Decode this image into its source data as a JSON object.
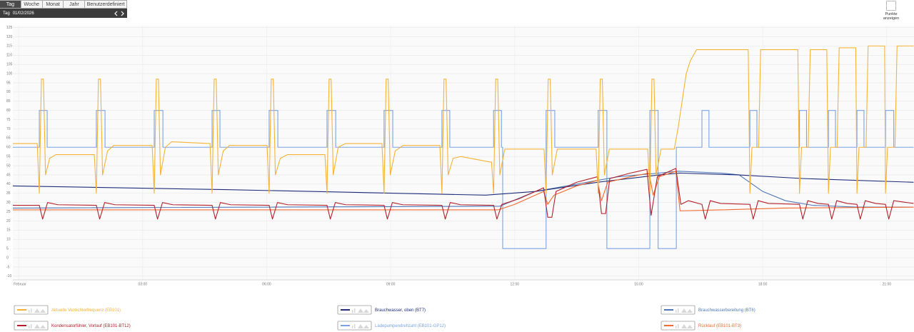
{
  "toolbar": {
    "tabs": [
      "Tag",
      "Woche",
      "Monat",
      "Jahr",
      "Benutzerdefiniert"
    ],
    "period": "Tag",
    "date": "01/02/2026"
  },
  "options": {
    "show_points": "Punkte anzeigen"
  },
  "chart_data": {
    "type": "line",
    "grid": true,
    "xlim": [
      -0.14,
      21.66
    ],
    "ylim": [
      -12,
      126
    ],
    "xticks": [
      {
        "value": 0,
        "label": "Februar"
      },
      {
        "value": 3,
        "label": "03:00"
      },
      {
        "value": 6,
        "label": "06:00"
      },
      {
        "value": 9,
        "label": "09:00"
      },
      {
        "value": 12,
        "label": "12:00"
      },
      {
        "value": 15,
        "label": "15:00"
      },
      {
        "value": 18,
        "label": "18:00"
      },
      {
        "value": 21,
        "label": "21:00"
      }
    ],
    "yticks": [
      -10,
      -5,
      0,
      5,
      10,
      15,
      20,
      25,
      30,
      35,
      40,
      45,
      50,
      55,
      60,
      65,
      70,
      75,
      80,
      85,
      90,
      95,
      100,
      105,
      110,
      115,
      120,
      125
    ],
    "series": [
      {
        "name": "Aktuelle Verdichterfrequenz (EB101)",
        "color": "#f5b335",
        "x": [
          -0.14,
          0.45,
          0.5,
          0.55,
          0.6,
          0.65,
          0.75,
          0.9,
          1.83,
          1.88,
          1.93,
          1.98,
          2.03,
          2.15,
          2.3,
          3.23,
          3.28,
          3.33,
          3.38,
          3.43,
          3.55,
          3.7,
          4.63,
          4.68,
          4.73,
          4.78,
          4.83,
          4.95,
          5.1,
          6.01,
          6.06,
          6.11,
          6.16,
          6.21,
          6.33,
          6.5,
          7.41,
          7.46,
          7.51,
          7.56,
          7.61,
          7.73,
          7.9,
          8.79,
          8.84,
          8.89,
          8.94,
          8.99,
          9.11,
          9.3,
          10.19,
          10.24,
          10.29,
          10.34,
          10.39,
          10.51,
          10.7,
          11.4,
          11.44,
          11.49,
          11.54,
          11.59,
          11.64,
          11.76,
          12.71,
          12.76,
          12.81,
          12.86,
          12.91,
          13.03,
          13.97,
          14.02,
          14.07,
          14.12,
          14.17,
          14.29,
          15.22,
          15.27,
          15.32,
          15.37,
          15.42,
          15.54,
          15.86,
          15.95,
          16.05,
          16.15,
          16.25,
          16.4,
          17.65,
          17.69,
          17.74,
          17.9,
          17.95,
          18.85,
          18.89,
          18.94,
          19.1,
          19.15,
          19.55,
          19.59,
          19.64,
          19.8,
          19.85,
          20.25,
          20.28,
          20.33,
          20.5,
          20.55,
          20.95,
          20.97,
          21.02,
          21.2,
          21.25,
          21.65
        ],
        "values": [
          62,
          62,
          35,
          97,
          97,
          45,
          54,
          56,
          56,
          35,
          97,
          97,
          45,
          58,
          61,
          61,
          35,
          97,
          97,
          45,
          60,
          63,
          62,
          35,
          97,
          97,
          45,
          58,
          61,
          61,
          35,
          97,
          97,
          45,
          54,
          56,
          56,
          35,
          97,
          97,
          45,
          60,
          62,
          62,
          35,
          97,
          97,
          45,
          58,
          61,
          61,
          35,
          97,
          97,
          45,
          54,
          55,
          52,
          52,
          35,
          97,
          97,
          45,
          59,
          59,
          35,
          97,
          97,
          45,
          59,
          59,
          35,
          97,
          97,
          45,
          59,
          59,
          35,
          97,
          97,
          45,
          59,
          59,
          70,
          85,
          100,
          107,
          113,
          113,
          35,
          60,
          60,
          113,
          113,
          35,
          60,
          60,
          113,
          113,
          35,
          60,
          60,
          114,
          114,
          35,
          60,
          60,
          115,
          115,
          35,
          60,
          60,
          115,
          115
        ]
      },
      {
        "name": "Brauchwasser, oben (BT7)",
        "color": "#1f2d7a",
        "x": [
          -0.14,
          5,
          11.3,
          12.5,
          14,
          15.5,
          16.0,
          17.4,
          19,
          21.65
        ],
        "values": [
          39,
          37,
          34,
          36,
          41,
          45,
          46,
          45,
          43,
          41
        ]
      },
      {
        "name": "Brauchwasserbereitung (BT6)",
        "color": "#4e77b8",
        "x": [
          -0.14,
          11.64,
          12.5,
          13.5,
          14.5,
          15.5,
          15.96,
          17.0,
          17.43,
          18.0,
          18.55,
          19.2,
          20.28,
          21.65
        ],
        "values": [
          27,
          28,
          36,
          40,
          44,
          46,
          47,
          46,
          45,
          36,
          31,
          28.5,
          27.5,
          27.5
        ]
      },
      {
        "name": "Kondensatorfühler, Vorlauf (EB101-BT12)",
        "color": "#b3202a",
        "x": [
          -0.14,
          0.5,
          0.58,
          0.7,
          0.95,
          1.88,
          1.96,
          2.08,
          2.33,
          3.28,
          3.36,
          3.48,
          3.73,
          4.68,
          4.76,
          4.88,
          5.13,
          6.06,
          6.14,
          6.26,
          6.51,
          7.46,
          7.54,
          7.66,
          7.91,
          8.84,
          8.92,
          9.04,
          9.29,
          10.24,
          10.32,
          10.44,
          10.69,
          11.49,
          11.57,
          11.69,
          12.1,
          12.7,
          12.8,
          12.9,
          13.0,
          13.5,
          14.0,
          14.1,
          14.2,
          14.3,
          14.8,
          15.2,
          15.3,
          15.45,
          15.9,
          16.02,
          16.2,
          16.53,
          16.61,
          16.73,
          16.98,
          17.69,
          17.77,
          17.89,
          18.14,
          18.89,
          18.97,
          19.09,
          19.34,
          19.59,
          19.67,
          19.79,
          20.04,
          20.28,
          20.36,
          20.48,
          20.73,
          20.97,
          21.05,
          21.17,
          21.65
        ],
        "values": [
          28.5,
          28.5,
          21,
          30,
          28.8,
          28.5,
          21,
          30,
          28.8,
          28.5,
          21,
          30,
          28.8,
          28.5,
          21,
          30,
          28.8,
          28.5,
          21,
          30,
          28.8,
          28.5,
          21,
          30,
          28.8,
          28.5,
          21,
          30,
          28.8,
          28.5,
          21,
          30,
          28.8,
          28.5,
          21,
          29,
          32,
          38,
          22,
          22,
          36,
          41,
          44,
          24,
          24,
          43,
          46,
          48,
          23,
          44,
          48.5,
          29,
          31,
          29,
          21,
          31,
          29.5,
          29,
          21,
          31,
          29.5,
          29,
          21,
          31,
          29.5,
          29,
          21,
          31,
          29.5,
          29,
          21,
          31,
          29.5,
          29,
          21,
          31,
          29.5
        ]
      },
      {
        "name": "Ladepumpendrehzahl (EB101-GP12)",
        "color": "#7aa3e5",
        "x": [
          -0.14,
          0.5,
          0.5,
          0.69,
          0.69,
          1.88,
          1.88,
          2.09,
          2.09,
          3.28,
          3.28,
          3.49,
          3.49,
          4.68,
          4.68,
          4.87,
          4.87,
          6.06,
          6.06,
          6.27,
          6.27,
          7.46,
          7.46,
          7.67,
          7.67,
          8.84,
          8.84,
          9.05,
          9.05,
          10.24,
          10.24,
          10.43,
          10.43,
          11.49,
          11.49,
          11.68,
          11.68,
          11.71,
          11.71,
          12.76,
          12.76,
          12.97,
          12.97,
          14.02,
          14.02,
          14.23,
          14.23,
          15.27,
          15.27,
          15.47,
          15.47,
          15.91,
          15.91,
          16.53,
          16.53,
          16.7,
          16.7,
          17.69,
          17.69,
          17.86,
          17.86,
          18.89,
          18.89,
          19.06,
          19.06,
          19.59,
          19.59,
          19.76,
          19.76,
          20.28,
          20.28,
          20.45,
          20.45,
          20.97,
          20.97,
          21.17,
          21.17,
          21.65
        ],
        "values": [
          60,
          60,
          80,
          80,
          60,
          60,
          80,
          80,
          60,
          60,
          80,
          80,
          60,
          60,
          80,
          80,
          60,
          60,
          80,
          80,
          60,
          60,
          80,
          80,
          60,
          60,
          80,
          80,
          60,
          60,
          80,
          80,
          60,
          60,
          80,
          80,
          60,
          60,
          5,
          5,
          80,
          80,
          60,
          60,
          80,
          80,
          5,
          5,
          80,
          80,
          5,
          5,
          60,
          60,
          80,
          80,
          60,
          60,
          80,
          80,
          60,
          60,
          80,
          80,
          60,
          60,
          80,
          80,
          60,
          60,
          80,
          80,
          60,
          60,
          80,
          80,
          60,
          60
        ]
      },
      {
        "name": "Rücklauf (EB101-BT3)",
        "color": "#f26a2e",
        "x": [
          -0.14,
          11.6,
          12.0,
          12.7,
          12.8,
          12.95,
          13.5,
          14.0,
          14.1,
          14.25,
          14.8,
          15.25,
          15.35,
          15.5,
          15.9,
          16.0,
          17.0,
          18.5,
          21.65
        ],
        "values": [
          26,
          26,
          29,
          36,
          29,
          34,
          39,
          42,
          31,
          41,
          44,
          46,
          34,
          44,
          47,
          25.5,
          26,
          27,
          27.5
        ]
      }
    ]
  }
}
